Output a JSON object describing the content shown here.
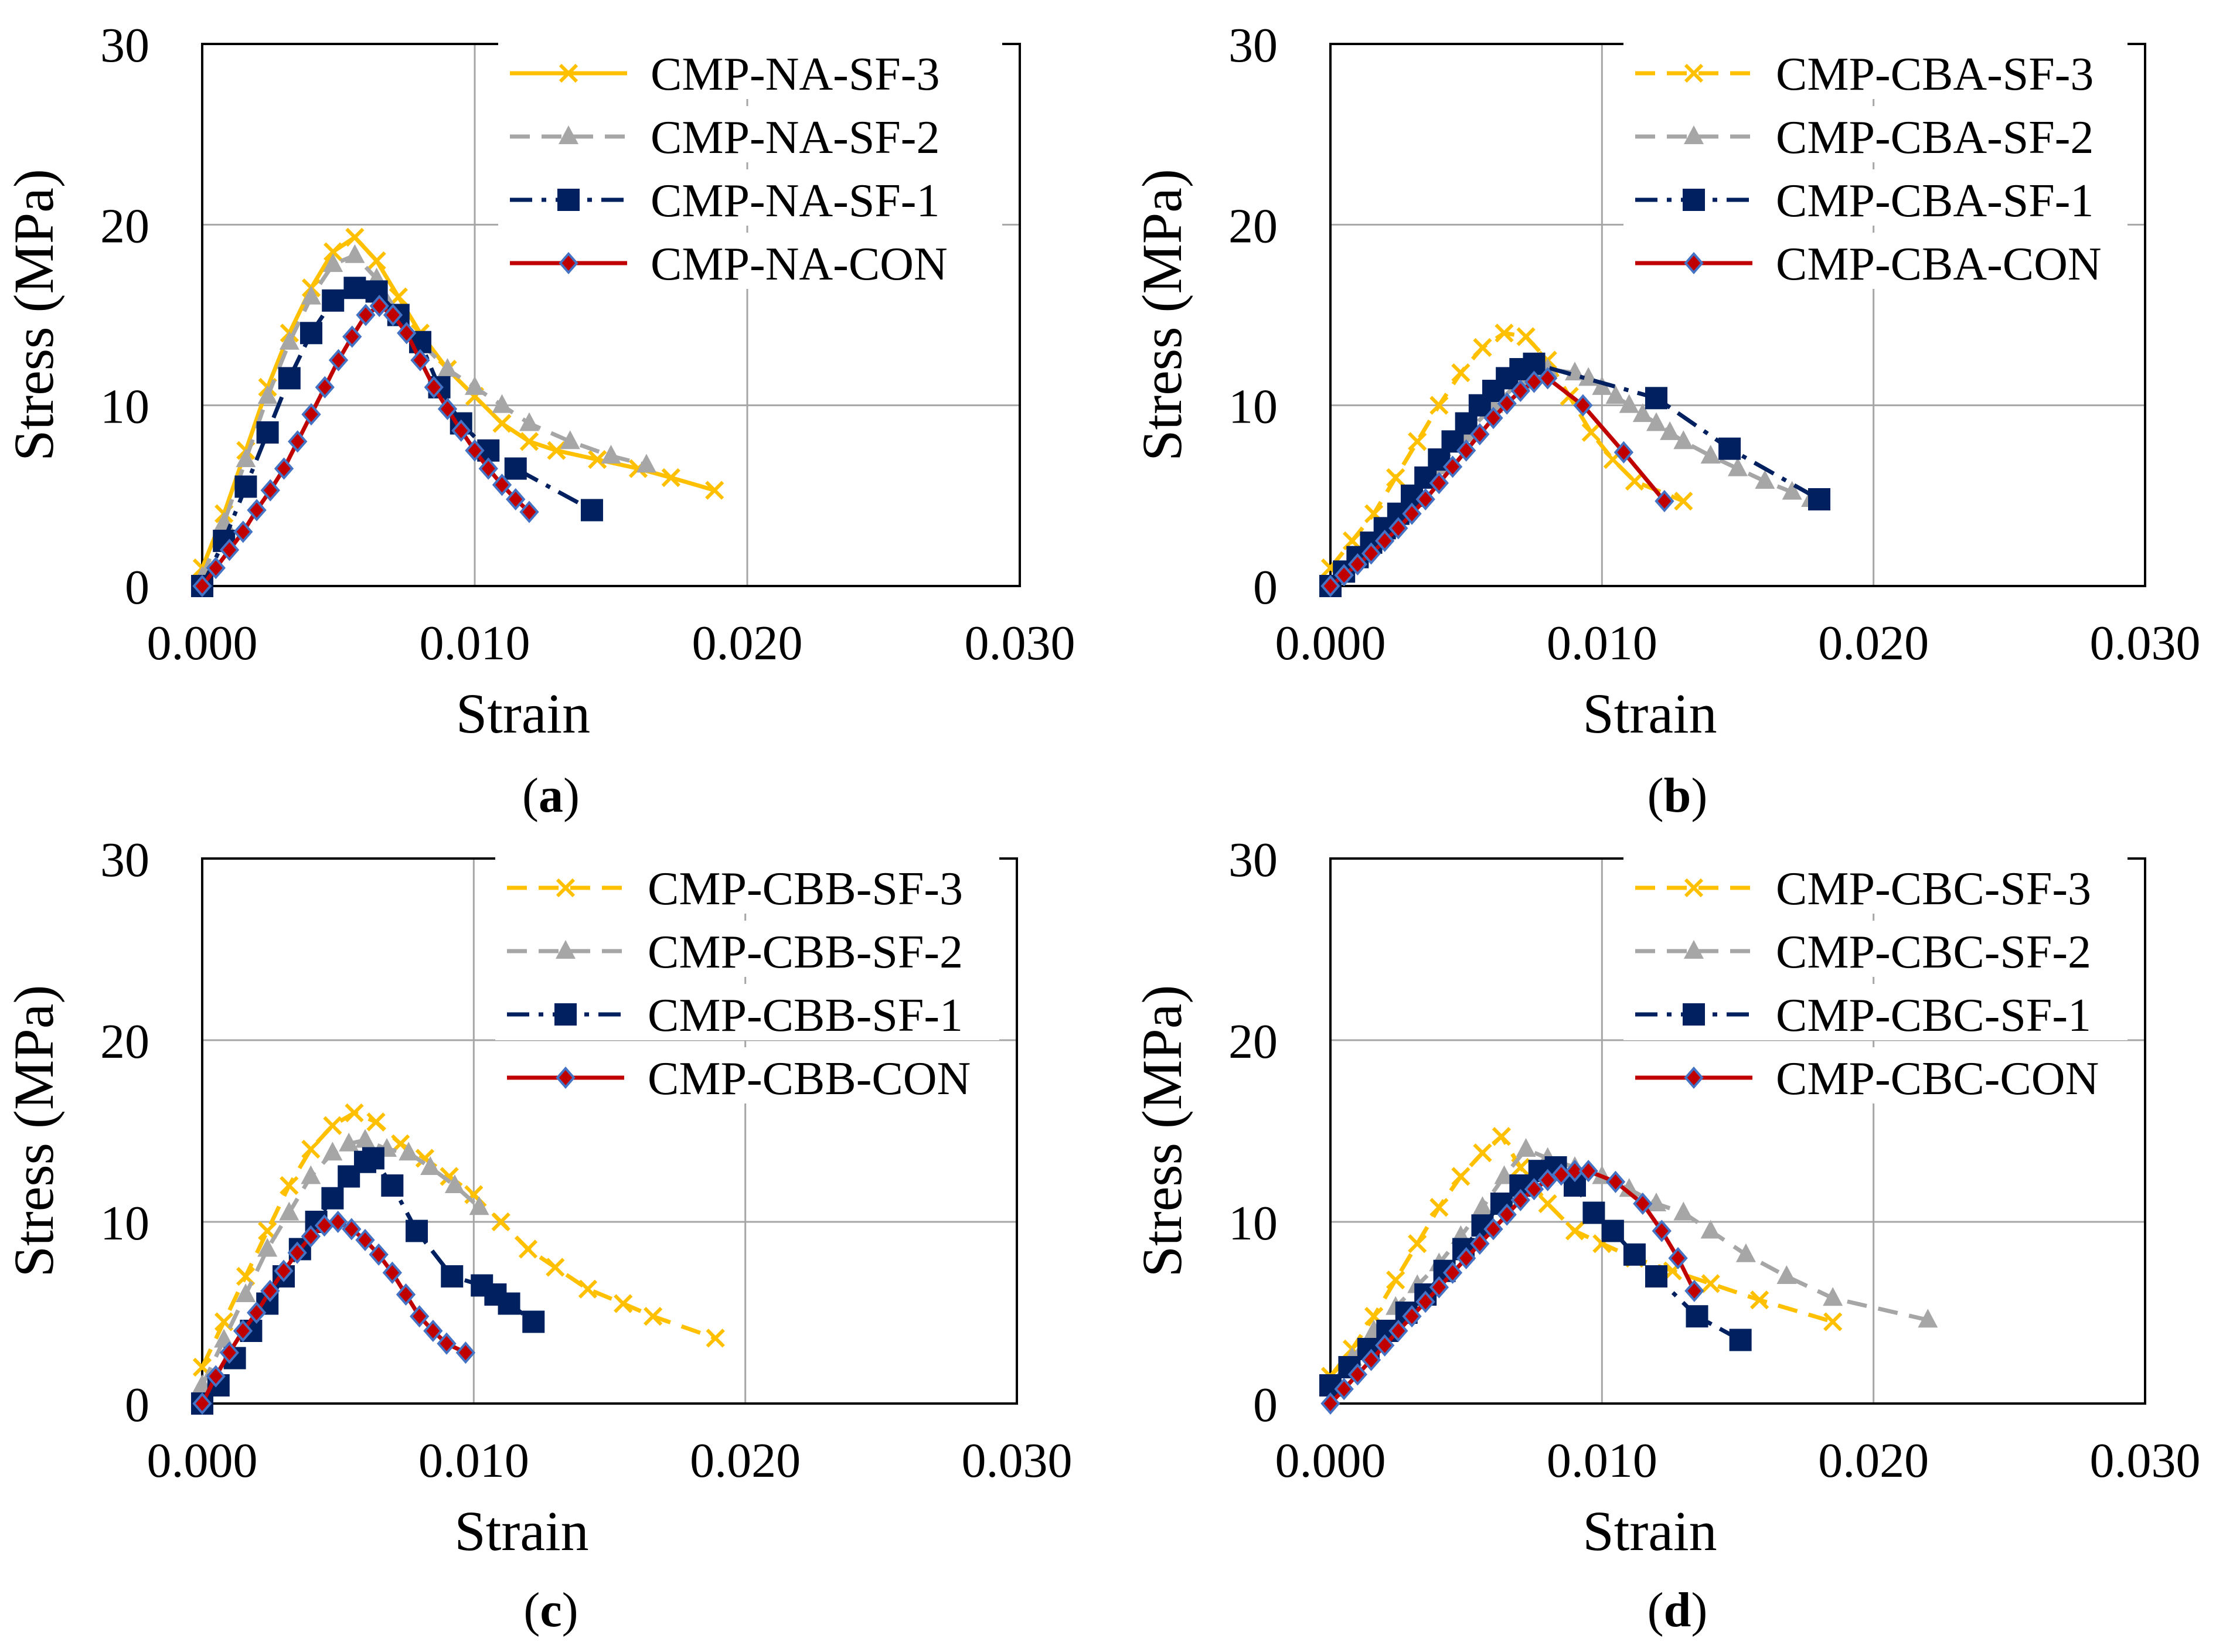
{
  "panels": [
    {
      "caption": "a",
      "chart_data": {
        "type": "line",
        "xlabel": "Strain",
        "ylabel": "Stress (MPa)",
        "xlim": [
          0,
          0.03
        ],
        "ylim": [
          0,
          30
        ],
        "xticks": [
          "0.000",
          "0.010",
          "0.020",
          "0.030"
        ],
        "yticks": [
          "0",
          "10",
          "20",
          "30"
        ],
        "grid": true,
        "legend_position": "top-right",
        "series": [
          {
            "name": "CMP-NA-SF-3",
            "color": "#FFC000",
            "marker": "x",
            "dash": "solid",
            "x": [
              0.0,
              0.0008,
              0.0016,
              0.0024,
              0.0032,
              0.004,
              0.0048,
              0.0056,
              0.0064,
              0.0072,
              0.008,
              0.009,
              0.01,
              0.011,
              0.012,
              0.013,
              0.0145,
              0.016,
              0.0172,
              0.0188
            ],
            "y": [
              1.0,
              4.0,
              7.5,
              11.0,
              14.0,
              16.5,
              18.5,
              19.3,
              18.0,
              16.0,
              14.0,
              12.0,
              10.5,
              9.0,
              8.0,
              7.5,
              7.0,
              6.5,
              6.0,
              5.3
            ]
          },
          {
            "name": "CMP-NA-SF-2",
            "color": "#A6A6A6",
            "marker": "triangle",
            "dash": "dash",
            "x": [
              0.0,
              0.0008,
              0.0016,
              0.0024,
              0.0032,
              0.004,
              0.0048,
              0.0056,
              0.0064,
              0.0072,
              0.008,
              0.009,
              0.01,
              0.011,
              0.012,
              0.0135,
              0.015,
              0.0163
            ],
            "y": [
              0.5,
              3.5,
              7.0,
              10.5,
              13.5,
              16.0,
              17.8,
              18.3,
              17.0,
              15.0,
              13.5,
              12.0,
              11.0,
              10.0,
              9.0,
              8.0,
              7.2,
              6.7
            ]
          },
          {
            "name": "CMP-NA-SF-1",
            "color": "#002060",
            "marker": "square",
            "dash": "dashdot",
            "x": [
              0.0,
              0.0008,
              0.0016,
              0.0024,
              0.0032,
              0.004,
              0.0048,
              0.0056,
              0.0064,
              0.0072,
              0.008,
              0.0087,
              0.0095,
              0.0105,
              0.0115,
              0.0143
            ],
            "y": [
              0.0,
              2.5,
              5.5,
              8.5,
              11.5,
              14.0,
              15.8,
              16.5,
              16.3,
              15.0,
              13.5,
              11.0,
              9.0,
              7.5,
              6.5,
              4.2
            ]
          },
          {
            "name": "CMP-NA-CON",
            "color": "#C00000",
            "marker": "diamond",
            "dash": "solid",
            "x": [
              0.0,
              0.0005,
              0.001,
              0.0015,
              0.002,
              0.0025,
              0.003,
              0.0035,
              0.004,
              0.0045,
              0.005,
              0.0055,
              0.006,
              0.0065,
              0.007,
              0.0075,
              0.008,
              0.0085,
              0.009,
              0.0095,
              0.01,
              0.0105,
              0.011,
              0.0115,
              0.012
            ],
            "y": [
              0.0,
              1.0,
              2.0,
              3.0,
              4.2,
              5.3,
              6.5,
              8.0,
              9.5,
              11.0,
              12.5,
              13.8,
              15.0,
              15.5,
              15.0,
              14.0,
              12.5,
              11.0,
              9.8,
              8.6,
              7.5,
              6.5,
              5.6,
              4.8,
              4.1
            ]
          }
        ]
      }
    },
    {
      "caption": "b",
      "chart_data": {
        "type": "line",
        "xlabel": "Strain",
        "ylabel": "Stress (MPa)",
        "xlim": [
          0,
          0.03
        ],
        "ylim": [
          0,
          30
        ],
        "xticks": [
          "0.000",
          "0.010",
          "0.020",
          "0.030"
        ],
        "yticks": [
          "0",
          "10",
          "20",
          "30"
        ],
        "grid": true,
        "legend_position": "top-right",
        "series": [
          {
            "name": "CMP-CBA-SF-3",
            "color": "#FFC000",
            "marker": "x",
            "dash": "dash",
            "x": [
              0.0,
              0.0008,
              0.0016,
              0.0024,
              0.0032,
              0.004,
              0.0048,
              0.0056,
              0.0064,
              0.0072,
              0.008,
              0.0088,
              0.0096,
              0.0104,
              0.0112,
              0.013
            ],
            "y": [
              1.0,
              2.5,
              4.0,
              6.0,
              8.0,
              10.0,
              11.8,
              13.2,
              14.0,
              13.8,
              12.5,
              10.5,
              8.5,
              7.0,
              5.8,
              4.7
            ]
          },
          {
            "name": "CMP-CBA-SF-2",
            "color": "#A6A6A6",
            "marker": "triangle",
            "dash": "dash",
            "x": [
              0.0,
              0.001,
              0.002,
              0.003,
              0.004,
              0.005,
              0.006,
              0.007,
              0.008,
              0.009,
              0.0095,
              0.01,
              0.0105,
              0.011,
              0.0115,
              0.012,
              0.0125,
              0.013,
              0.014,
              0.015,
              0.016,
              0.017,
              0.0177
            ],
            "y": [
              0.0,
              1.5,
              3.0,
              4.8,
              6.6,
              8.4,
              10.0,
              11.3,
              12.0,
              11.8,
              11.5,
              11.0,
              10.5,
              10.0,
              9.5,
              9.0,
              8.5,
              8.0,
              7.2,
              6.5,
              5.8,
              5.2,
              4.8
            ]
          },
          {
            "name": "CMP-CBA-SF-1",
            "color": "#002060",
            "marker": "square",
            "dash": "dashdot",
            "x": [
              0.0,
              0.0005,
              0.001,
              0.0015,
              0.002,
              0.0025,
              0.003,
              0.0035,
              0.004,
              0.0045,
              0.005,
              0.0055,
              0.006,
              0.0065,
              0.007,
              0.0075,
              0.012,
              0.0147,
              0.018
            ],
            "y": [
              0.0,
              0.8,
              1.6,
              2.4,
              3.2,
              4.0,
              5.0,
              6.0,
              7.0,
              8.0,
              9.0,
              10.0,
              10.8,
              11.5,
              12.0,
              12.3,
              10.4,
              7.6,
              4.8
            ]
          },
          {
            "name": "CMP-CBA-CON",
            "color": "#C00000",
            "marker": "diamond",
            "dash": "solid",
            "x": [
              0.0,
              0.0005,
              0.001,
              0.0015,
              0.002,
              0.0025,
              0.003,
              0.0035,
              0.004,
              0.0045,
              0.005,
              0.0055,
              0.006,
              0.0065,
              0.007,
              0.0075,
              0.008,
              0.0093,
              0.0108,
              0.0123
            ],
            "y": [
              0.0,
              0.6,
              1.2,
              1.8,
              2.5,
              3.2,
              4.0,
              4.8,
              5.7,
              6.6,
              7.5,
              8.4,
              9.3,
              10.1,
              10.8,
              11.3,
              11.5,
              10.0,
              7.4,
              4.7
            ]
          }
        ]
      }
    },
    {
      "caption": "c",
      "chart_data": {
        "type": "line",
        "xlabel": "Strain",
        "ylabel": "Stress (MPa)",
        "xlim": [
          0,
          0.03
        ],
        "ylim": [
          0,
          30
        ],
        "xticks": [
          "0.000",
          "0.010",
          "0.020",
          "0.030"
        ],
        "yticks": [
          "0",
          "10",
          "20",
          "30"
        ],
        "grid": true,
        "legend_position": "top-right",
        "series": [
          {
            "name": "CMP-CBB-SF-3",
            "color": "#FFC000",
            "marker": "x",
            "dash": "dash",
            "x": [
              0.0,
              0.0008,
              0.0016,
              0.0024,
              0.0032,
              0.004,
              0.0048,
              0.0056,
              0.0064,
              0.0073,
              0.0082,
              0.0091,
              0.01,
              0.011,
              0.012,
              0.013,
              0.0142,
              0.0155,
              0.0166,
              0.0189
            ],
            "y": [
              2.0,
              4.5,
              7.0,
              9.5,
              12.0,
              14.0,
              15.3,
              16.0,
              15.5,
              14.3,
              13.5,
              12.5,
              11.5,
              10.0,
              8.5,
              7.5,
              6.3,
              5.5,
              4.8,
              3.6
            ]
          },
          {
            "name": "CMP-CBB-SF-2",
            "color": "#A6A6A6",
            "marker": "triangle",
            "dash": "dash",
            "x": [
              0.0,
              0.0008,
              0.0016,
              0.0024,
              0.0032,
              0.004,
              0.0048,
              0.0054,
              0.006,
              0.0068,
              0.0076,
              0.0084,
              0.0093,
              0.0102
            ],
            "y": [
              1.0,
              3.5,
              6.0,
              8.5,
              10.5,
              12.5,
              13.8,
              14.3,
              14.5,
              14.0,
              13.8,
              13.0,
              12.0,
              10.8
            ]
          },
          {
            "name": "CMP-CBB-SF-1",
            "color": "#002060",
            "marker": "square",
            "dash": "dashdot",
            "x": [
              0.0,
              0.0006,
              0.0012,
              0.0018,
              0.0024,
              0.003,
              0.0036,
              0.0042,
              0.0048,
              0.0054,
              0.006,
              0.0063,
              0.007,
              0.0079,
              0.0092,
              0.0103,
              0.0108,
              0.0113,
              0.0122
            ],
            "y": [
              0.0,
              1.0,
              2.5,
              4.0,
              5.5,
              7.0,
              8.5,
              10.0,
              11.3,
              12.5,
              13.3,
              13.5,
              12.0,
              9.5,
              7.0,
              6.5,
              6.0,
              5.5,
              4.5
            ]
          },
          {
            "name": "CMP-CBB-CON",
            "color": "#C00000",
            "marker": "diamond",
            "dash": "solid",
            "x": [
              0.0,
              0.0005,
              0.001,
              0.0015,
              0.002,
              0.0025,
              0.003,
              0.0035,
              0.004,
              0.0045,
              0.005,
              0.0055,
              0.006,
              0.0065,
              0.007,
              0.0075,
              0.008,
              0.0085,
              0.009,
              0.0097
            ],
            "y": [
              0.0,
              1.5,
              2.8,
              4.0,
              5.0,
              6.2,
              7.3,
              8.3,
              9.2,
              9.8,
              10.0,
              9.6,
              9.0,
              8.2,
              7.2,
              6.0,
              4.8,
              4.0,
              3.3,
              2.8
            ]
          }
        ]
      }
    },
    {
      "caption": "d",
      "chart_data": {
        "type": "line",
        "xlabel": "Strain",
        "ylabel": "Stress (MPa)",
        "xlim": [
          0,
          0.03
        ],
        "ylim": [
          0,
          30
        ],
        "xticks": [
          "0.000",
          "0.010",
          "0.020",
          "0.030"
        ],
        "yticks": [
          "0",
          "10",
          "20",
          "30"
        ],
        "grid": true,
        "legend_position": "top-right",
        "series": [
          {
            "name": "CMP-CBC-SF-3",
            "color": "#FFC000",
            "marker": "x",
            "dash": "dash",
            "x": [
              0.0,
              0.0008,
              0.0016,
              0.0024,
              0.0032,
              0.004,
              0.0048,
              0.0056,
              0.0063,
              0.007,
              0.008,
              0.009,
              0.01,
              0.0112,
              0.0126,
              0.014,
              0.0158,
              0.0185
            ],
            "y": [
              1.5,
              3.0,
              4.8,
              6.8,
              8.8,
              10.8,
              12.5,
              13.8,
              14.7,
              13.0,
              11.0,
              9.5,
              8.8,
              8.0,
              7.3,
              6.6,
              5.7,
              4.5
            ]
          },
          {
            "name": "CMP-CBC-SF-2",
            "color": "#A6A6A6",
            "marker": "triangle",
            "dash": "dash",
            "x": [
              0.0,
              0.0008,
              0.0016,
              0.0024,
              0.0032,
              0.004,
              0.0048,
              0.0056,
              0.0064,
              0.0072,
              0.008,
              0.009,
              0.01,
              0.011,
              0.012,
              0.013,
              0.014,
              0.0153,
              0.0168,
              0.0185,
              0.022
            ],
            "y": [
              1.0,
              2.5,
              4.0,
              5.3,
              6.5,
              7.7,
              9.2,
              10.8,
              12.5,
              14.0,
              13.5,
              13.0,
              12.5,
              11.8,
              11.0,
              10.5,
              9.5,
              8.2,
              7.0,
              5.8,
              4.6
            ]
          },
          {
            "name": "CMP-CBC-SF-1",
            "color": "#002060",
            "marker": "square",
            "dash": "dashdot",
            "x": [
              0.0,
              0.0007,
              0.0014,
              0.0021,
              0.0028,
              0.0035,
              0.0042,
              0.0049,
              0.0056,
              0.0063,
              0.007,
              0.0077,
              0.0083,
              0.009,
              0.0097,
              0.0104,
              0.0112,
              0.012,
              0.0135,
              0.0151
            ],
            "y": [
              1.0,
              2.0,
              3.0,
              4.0,
              5.0,
              6.0,
              7.3,
              8.5,
              9.8,
              11.0,
              12.0,
              12.8,
              13.0,
              12.0,
              10.5,
              9.5,
              8.2,
              7.0,
              4.8,
              3.5
            ]
          },
          {
            "name": "CMP-CBC-CON",
            "color": "#C00000",
            "marker": "diamond",
            "dash": "solid",
            "x": [
              0.0,
              0.0005,
              0.001,
              0.0015,
              0.002,
              0.0025,
              0.003,
              0.0035,
              0.004,
              0.0045,
              0.005,
              0.0055,
              0.006,
              0.0065,
              0.007,
              0.0075,
              0.008,
              0.0085,
              0.009,
              0.0095,
              0.0105,
              0.0115,
              0.0122,
              0.0128,
              0.0134
            ],
            "y": [
              0.0,
              0.8,
              1.6,
              2.4,
              3.2,
              4.0,
              4.8,
              5.6,
              6.4,
              7.2,
              8.0,
              8.8,
              9.6,
              10.4,
              11.2,
              11.8,
              12.3,
              12.6,
              12.8,
              12.8,
              12.2,
              11.0,
              9.5,
              8.0,
              6.2
            ]
          }
        ]
      }
    }
  ]
}
